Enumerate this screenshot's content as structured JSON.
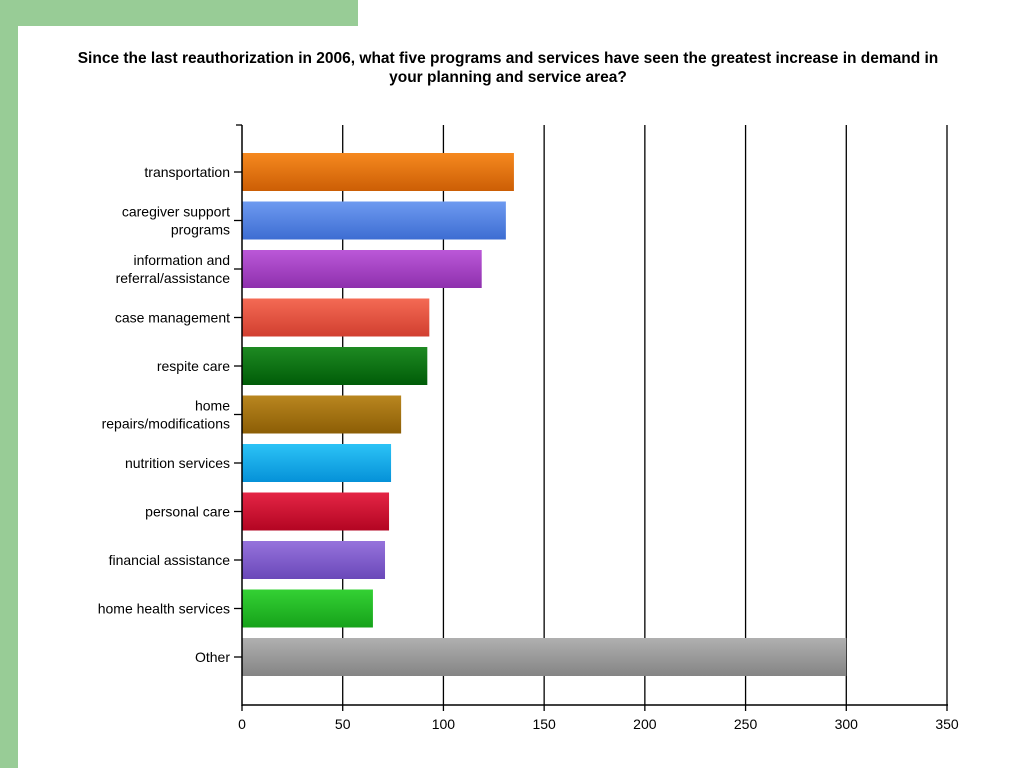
{
  "colors": {
    "decoration": "#98cc96",
    "axis": "#000000",
    "grid": "#000000"
  },
  "chart_data": {
    "type": "bar",
    "orientation": "horizontal",
    "title": "Since the last reauthorization in 2006, what five programs and services have seen the greatest increase in demand in your planning and service area?",
    "categories": [
      [
        "transportation"
      ],
      [
        "caregiver support",
        "programs"
      ],
      [
        "information and",
        "referral/assistance"
      ],
      [
        "case management"
      ],
      [
        "respite care"
      ],
      [
        "home",
        "repairs/modifications"
      ],
      [
        "nutrition services"
      ],
      [
        "personal care"
      ],
      [
        "financial assistance"
      ],
      [
        "home health services"
      ],
      [
        "Other"
      ]
    ],
    "values": [
      135,
      131,
      119,
      93,
      92,
      79,
      74,
      73,
      71,
      65,
      300
    ],
    "bar_colors": [
      [
        "#f6891f",
        "#cc5e05"
      ],
      [
        "#6e9af0",
        "#3d6dd2"
      ],
      [
        "#bb58d8",
        "#8e30ad"
      ],
      [
        "#f46a54",
        "#d13f30"
      ],
      [
        "#1e8a22",
        "#005c08"
      ],
      [
        "#b9861f",
        "#8c5e06"
      ],
      [
        "#2cc3f6",
        "#0591d8"
      ],
      [
        "#e42545",
        "#b30522"
      ],
      [
        "#9673dc",
        "#6a48b9"
      ],
      [
        "#34d134",
        "#16a21a"
      ],
      [
        "#b0b0b0",
        "#848484"
      ]
    ],
    "xlim": [
      0,
      350
    ],
    "xticks": [
      0,
      50,
      100,
      150,
      200,
      250,
      300,
      350
    ],
    "grid": true,
    "legend": false,
    "xlabel": "",
    "ylabel": ""
  }
}
